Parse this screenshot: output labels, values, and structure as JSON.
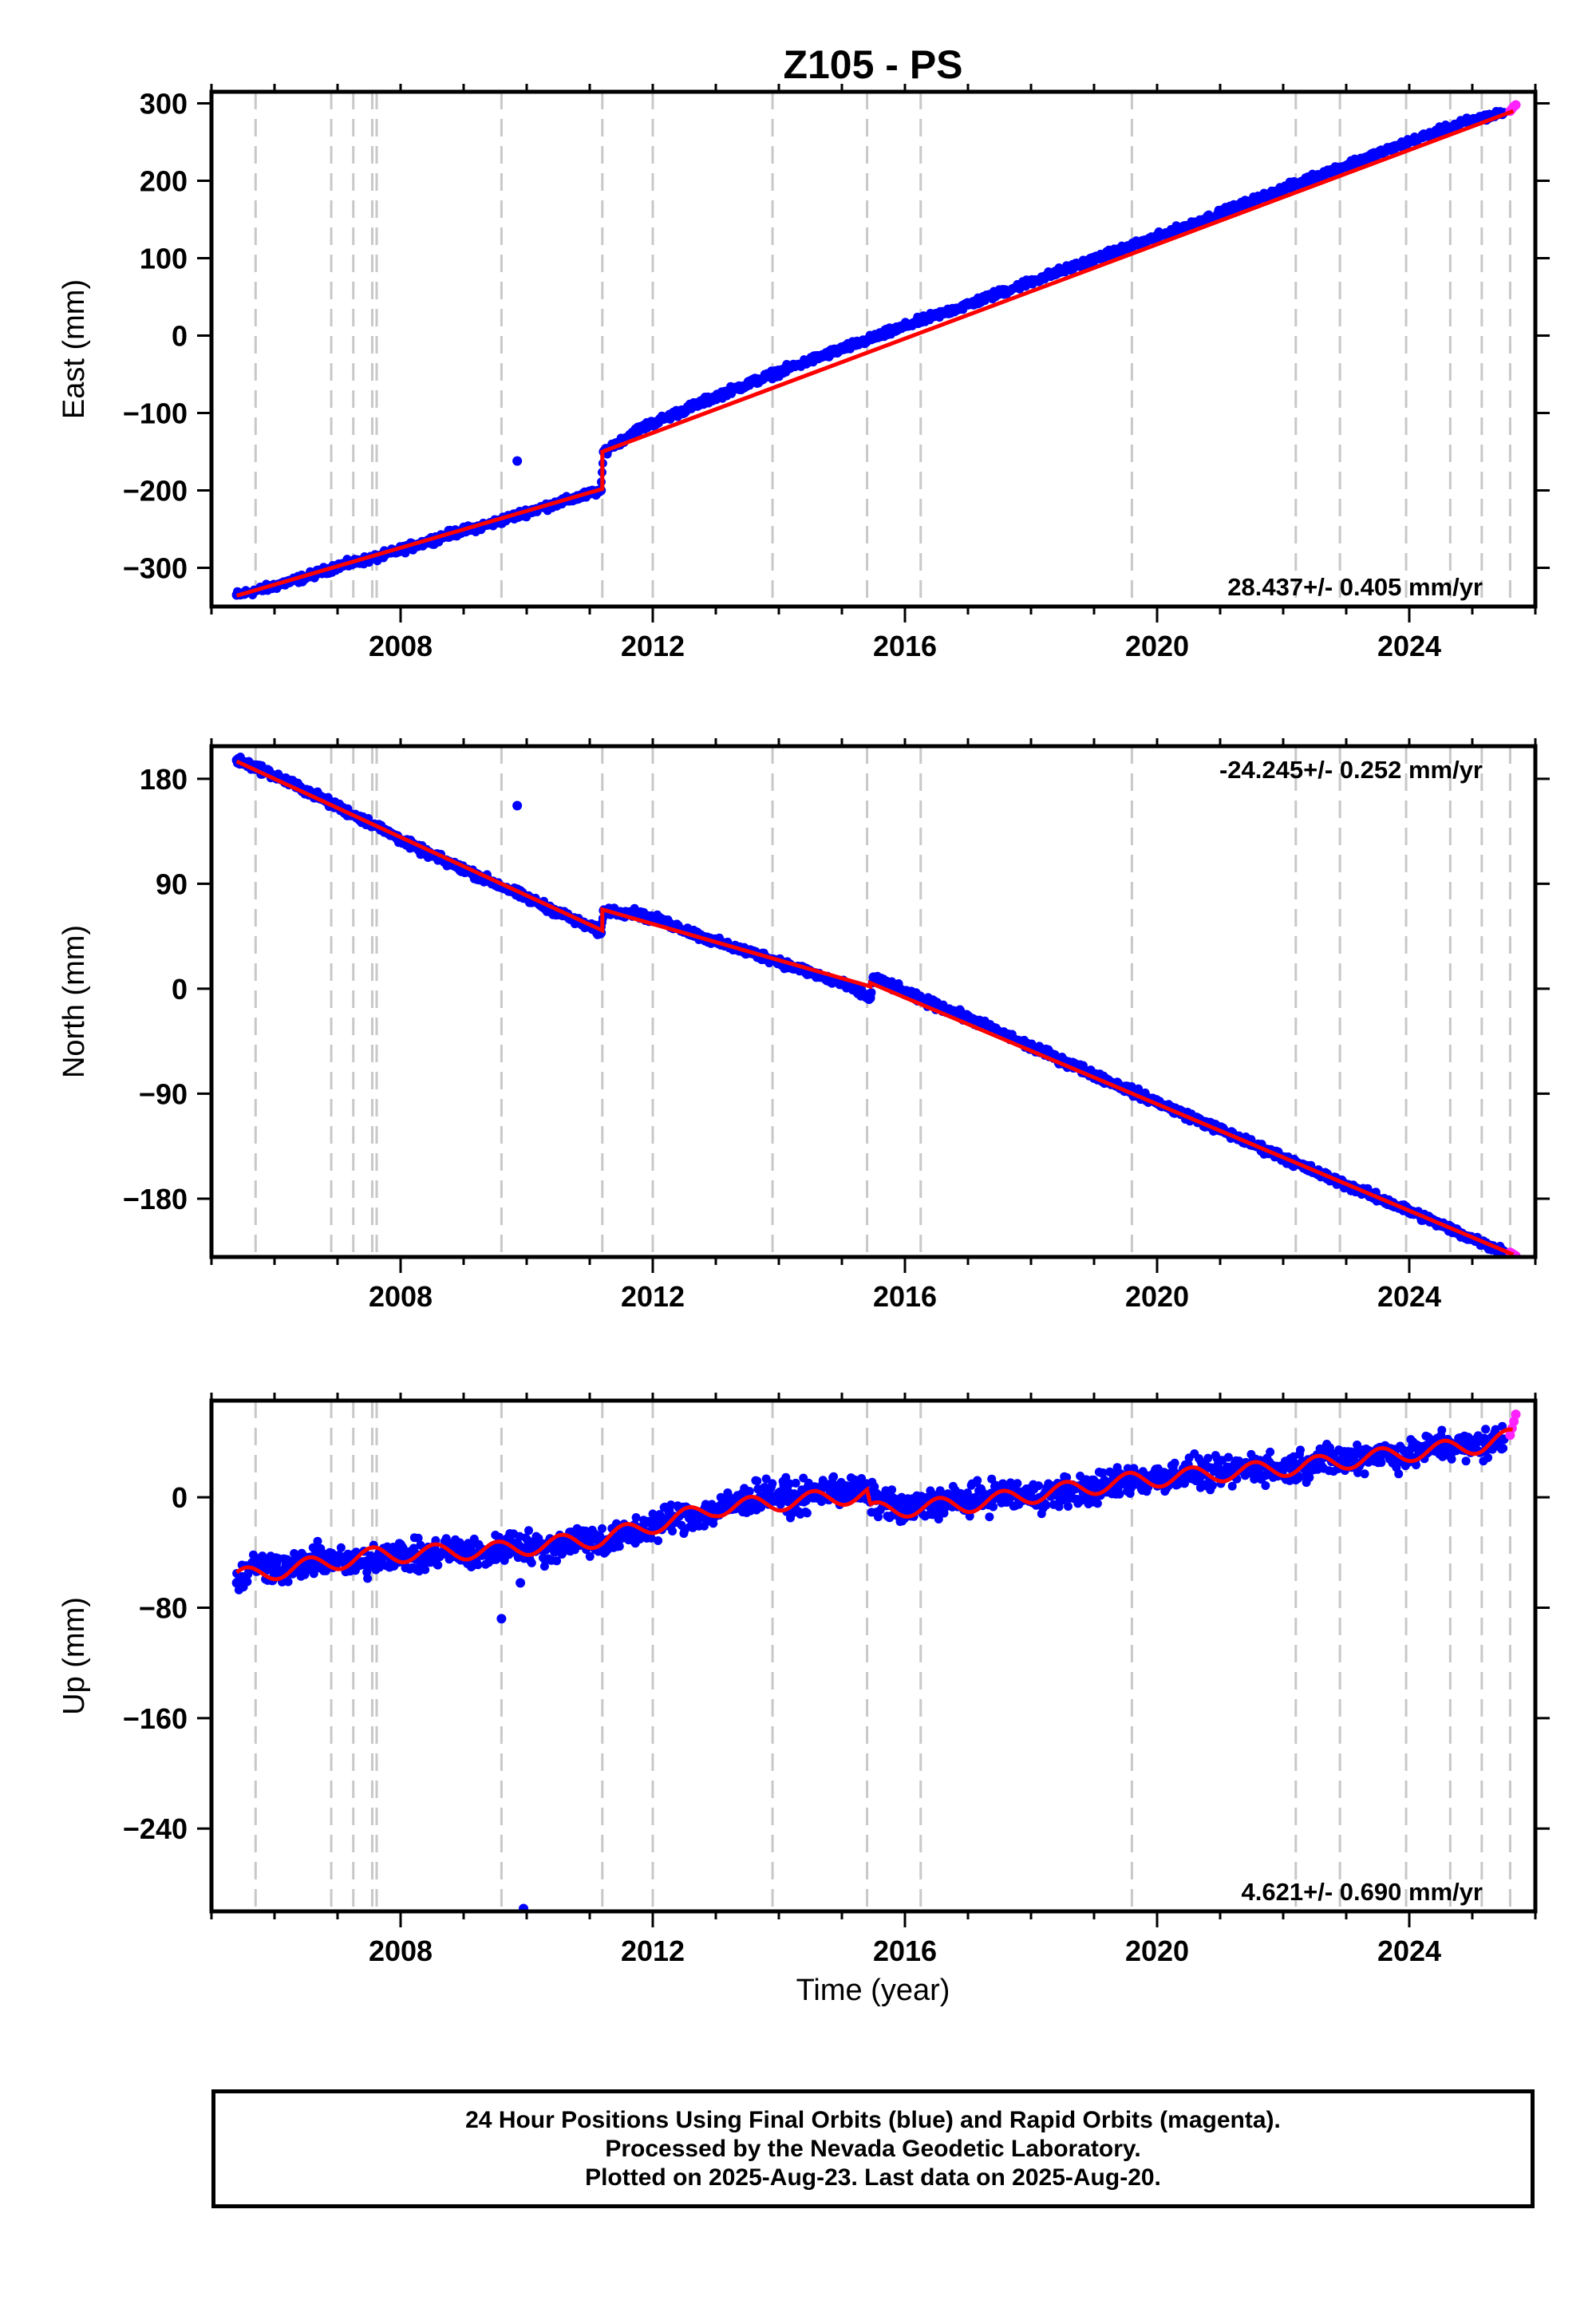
{
  "figure": {
    "title": "Z105 - PS",
    "xlabel": "Time (year)"
  },
  "footer": {
    "line1": "24 Hour Positions Using Final Orbits (blue) and Rapid Orbits (magenta).",
    "line2": "Processed by the Nevada Geodetic Laboratory.",
    "line3": "Plotted on 2025-Aug-23. Last data on 2025-Aug-20."
  },
  "colors": {
    "final_orbits": "#0000ff",
    "rapid_orbits": "#ff22ff",
    "model": "#ff0000",
    "event_lines": "#c8c8c8"
  },
  "chart_data": [
    {
      "type": "scatter",
      "panel": "east",
      "ylabel": "East (mm)",
      "rate_label": "28.437+/- 0.405 mm/yr",
      "xlim": [
        2005.0,
        2026.0
      ],
      "ylim": [
        -350,
        315
      ],
      "xticks": [
        2008,
        2012,
        2016,
        2020,
        2024
      ],
      "yticks": [
        300,
        200,
        100,
        0,
        -100,
        -200,
        -300
      ],
      "ytick_labels": [
        "300",
        "200",
        "100",
        "0",
        "−100",
        "−200",
        "−300"
      ],
      "event_lines": [
        2005.7,
        2006.9,
        2007.25,
        2007.55,
        2007.62,
        2009.6,
        2011.2,
        2012.0,
        2013.9,
        2015.4,
        2016.25,
        2019.6,
        2022.2,
        2022.9,
        2023.95,
        2024.65,
        2025.15,
        2025.6
      ],
      "series": [
        {
          "name": "Final Orbits",
          "color": "#0000ff",
          "x": [
            2005.4,
            2005.8,
            2006.5,
            2007.0,
            2007.6,
            2008.2,
            2008.8,
            2009.4,
            2010.0,
            2010.6,
            2011.18,
            2011.22,
            2011.8,
            2012.5,
            2013.2,
            2014.0,
            2014.8,
            2015.5,
            2016.2,
            2017.0,
            2017.8,
            2018.6,
            2019.4,
            2020.2,
            2021.0,
            2021.8,
            2022.6,
            2023.4,
            2024.2,
            2024.9,
            2025.5
          ],
          "y": [
            -335,
            -328,
            -312,
            -298,
            -287,
            -272,
            -256,
            -244,
            -228,
            -214,
            -200,
            -150,
            -120,
            -96,
            -72,
            -47,
            -23,
            -3,
            18,
            40,
            64,
            87,
            110,
            133,
            158,
            183,
            208,
            232,
            256,
            276,
            288
          ]
        },
        {
          "name": "Rapid Orbits",
          "color": "#ff22ff",
          "x": [
            2025.6,
            2025.63,
            2025.66,
            2025.69
          ],
          "y": [
            290,
            293,
            296,
            298
          ]
        },
        {
          "name": "Outliers",
          "color": "#0000ff",
          "x": [
            2009.85
          ],
          "y": [
            -162
          ]
        }
      ],
      "model": {
        "x": [
          2005.4,
          2011.2,
          2011.2,
          2025.65
        ],
        "y": [
          -336,
          -198,
          -150,
          290
        ]
      }
    },
    {
      "type": "scatter",
      "panel": "north",
      "ylabel": "North (mm)",
      "rate_label": "-24.245+/- 0.252 mm/yr",
      "xlim": [
        2005.0,
        2026.0
      ],
      "ylim": [
        -230,
        208
      ],
      "xticks": [
        2008,
        2012,
        2016,
        2020,
        2024
      ],
      "yticks": [
        180,
        90,
        0,
        -90,
        -180
      ],
      "ytick_labels": [
        "180",
        "90",
        "0",
        "−90",
        "−180"
      ],
      "event_lines": [
        2005.7,
        2006.9,
        2007.25,
        2007.55,
        2007.62,
        2009.6,
        2011.2,
        2012.0,
        2013.9,
        2015.4,
        2016.25,
        2019.6,
        2022.2,
        2022.9,
        2023.95,
        2024.65,
        2025.15,
        2025.6
      ],
      "series": [
        {
          "name": "Final Orbits",
          "color": "#0000ff",
          "x": [
            2005.4,
            2005.8,
            2006.5,
            2007.0,
            2007.6,
            2008.2,
            2008.8,
            2009.4,
            2010.0,
            2010.6,
            2011.18,
            2011.22,
            2011.7,
            2012.3,
            2013.0,
            2013.8,
            2014.5,
            2015.1,
            2015.45,
            2015.5,
            2016.2,
            2017.0,
            2017.8,
            2018.6,
            2019.4,
            2020.2,
            2021.0,
            2021.8,
            2022.6,
            2023.4,
            2024.2,
            2024.9,
            2025.5
          ],
          "y": [
            196,
            188,
            170,
            156,
            140,
            122,
            107,
            93,
            78,
            63,
            48,
            67,
            65,
            55,
            40,
            27,
            14,
            2,
            -8,
            10,
            -8,
            -25,
            -45,
            -64,
            -83,
            -102,
            -121,
            -140,
            -159,
            -177,
            -195,
            -212,
            -225
          ]
        },
        {
          "name": "Rapid Orbits",
          "color": "#ff22ff",
          "x": [
            2025.6,
            2025.63,
            2025.66,
            2025.69
          ],
          "y": [
            -226,
            -227,
            -228,
            -229
          ]
        },
        {
          "name": "Outliers",
          "color": "#0000ff",
          "x": [
            2009.85
          ],
          "y": [
            157
          ]
        }
      ],
      "model": {
        "x": [
          2005.4,
          2011.2,
          2011.2,
          2015.45,
          2015.45,
          2025.65
        ],
        "y": [
          195,
          50,
          68,
          2,
          5,
          -228
        ]
      }
    },
    {
      "type": "scatter",
      "panel": "up",
      "ylabel": "Up (mm)",
      "rate_label": "4.621+/- 0.690 mm/yr",
      "xlim": [
        2005.0,
        2026.0
      ],
      "ylim": [
        -300,
        70
      ],
      "xticks": [
        2008,
        2012,
        2016,
        2020,
        2024
      ],
      "yticks": [
        0,
        -80,
        -160,
        -240
      ],
      "ytick_labels": [
        "0",
        "−80",
        "−160",
        "−240"
      ],
      "event_lines": [
        2005.7,
        2006.9,
        2007.25,
        2007.55,
        2007.62,
        2009.6,
        2011.2,
        2012.0,
        2013.9,
        2015.4,
        2016.25,
        2019.6,
        2022.2,
        2022.9,
        2023.95,
        2024.65,
        2025.15,
        2025.6
      ],
      "series": [
        {
          "name": "Final Orbits",
          "color": "#0000ff",
          "x": [
            2005.4,
            2005.7,
            2006.2,
            2006.8,
            2007.3,
            2007.8,
            2008.3,
            2008.8,
            2009.3,
            2009.8,
            2010.3,
            2010.8,
            2011.3,
            2011.8,
            2012.3,
            2012.8,
            2013.3,
            2013.8,
            2014.3,
            2014.8,
            2015.3,
            2015.5,
            2016.0,
            2016.5,
            2017.0,
            2017.5,
            2018.0,
            2018.5,
            2019.0,
            2019.5,
            2020.0,
            2020.5,
            2021.0,
            2021.5,
            2022.0,
            2022.5,
            2023.0,
            2023.5,
            2024.0,
            2024.5,
            2025.0,
            2025.5
          ],
          "y": [
            -62,
            -48,
            -52,
            -44,
            -50,
            -40,
            -44,
            -38,
            -42,
            -34,
            -38,
            -30,
            -32,
            -24,
            -15,
            -12,
            -5,
            3,
            -2,
            6,
            4,
            -2,
            -10,
            -4,
            -2,
            2,
            0,
            4,
            6,
            12,
            14,
            18,
            16,
            22,
            20,
            26,
            28,
            32,
            30,
            38,
            36,
            42
          ]
        },
        {
          "name": "Rapid Orbits",
          "color": "#ff22ff",
          "x": [
            2025.6,
            2025.63,
            2025.66,
            2025.69
          ],
          "y": [
            45,
            50,
            55,
            60
          ]
        },
        {
          "name": "Outliers",
          "color": "#0000ff",
          "x": [
            2009.6,
            2009.9,
            2009.95
          ],
          "y": [
            -88,
            -62,
            -298
          ]
        }
      ],
      "model": {
        "x": [
          2005.4,
          2007.6,
          2009.6,
          2011.2,
          2013.0,
          2015.4,
          2015.45,
          2017.0,
          2019.6,
          2022.2,
          2024.0,
          2025.15,
          2025.65
        ],
        "y": [
          -58,
          -42,
          -38,
          -30,
          -8,
          2,
          -10,
          -5,
          12,
          22,
          32,
          38,
          44
        ]
      }
    }
  ]
}
